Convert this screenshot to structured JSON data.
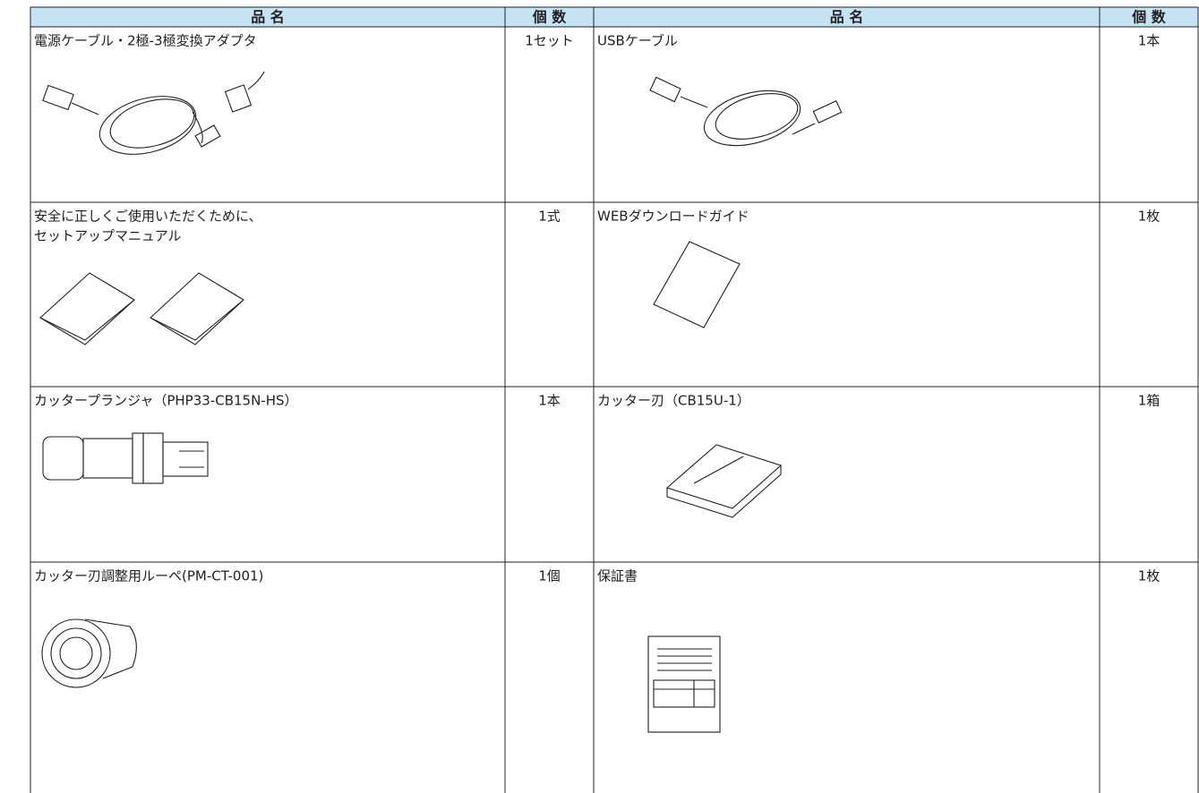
{
  "header": [
    "品 名",
    "個 数",
    "品 名",
    "個 数"
  ],
  "rows": [
    [
      {
        "name": [
          "電源ケーブル・2極-3極変換アダプタ"
        ],
        "quantity": "1セット"
      },
      {
        "name": [
          "USBケーブル"
        ],
        "quantity": "1本"
      }
    ],
    [
      {
        "name": [
          "安全に正しくご使用いただくために、",
          "セットアップマニュアル"
        ],
        "quantity": "1式"
      },
      {
        "name": [
          "WEBダウンロードガイド"
        ],
        "quantity": "1枚"
      }
    ],
    [
      {
        "name": [
          "カッタープランジャ（PHP33-CB15N-HS）"
        ],
        "quantity": "1本"
      },
      {
        "name": [
          "カッター刃（CB15U-1）"
        ],
        "quantity": "1箱"
      }
    ],
    [
      {
        "name": [
          "カッター刃調整用ルーペ(PM-CT-001)"
        ],
        "quantity": "1個"
      },
      {
        "name": [
          "保証書"
        ],
        "quantity": "1枚"
      }
    ]
  ]
}
